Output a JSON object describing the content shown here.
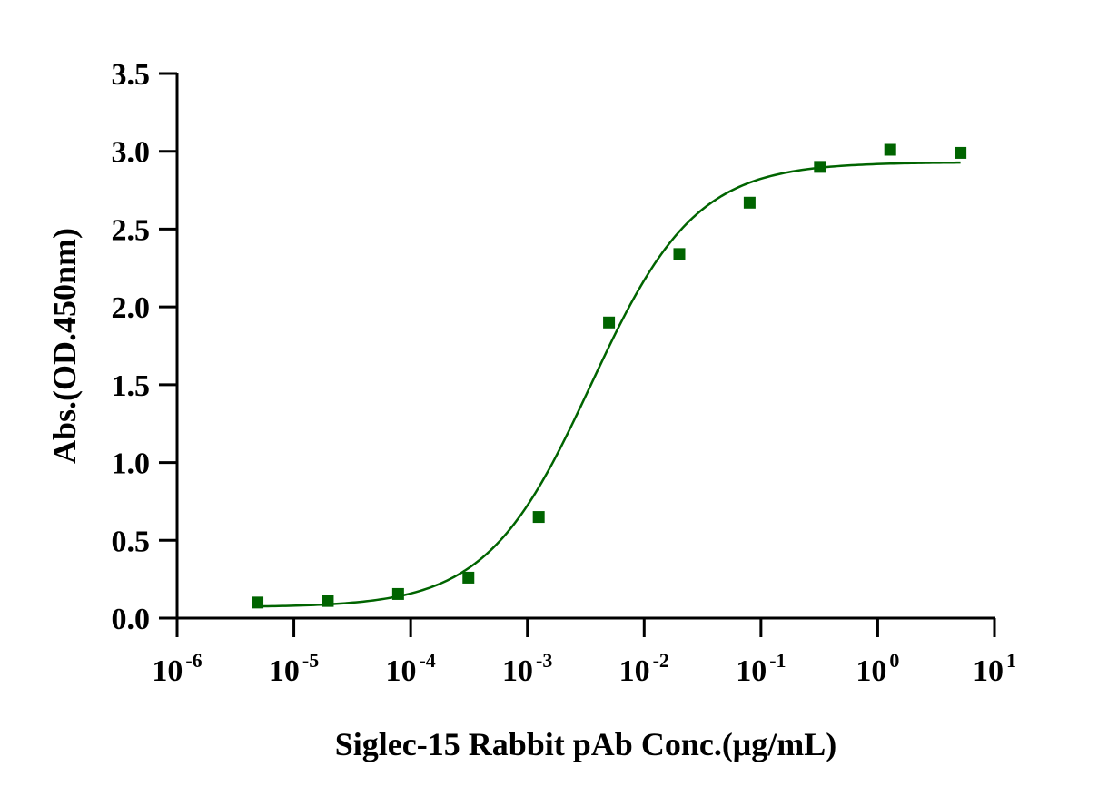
{
  "chart_data": {
    "type": "scatter",
    "title": "",
    "xlabel": "Siglec-15 Rabbit pAb Conc.(μg/mL)",
    "ylabel": "Abs.(OD.450nm)",
    "xscale": "log",
    "xlim": [
      1e-06,
      10
    ],
    "ylim": [
      0,
      3.5
    ],
    "x_ticks": [
      {
        "base": "10",
        "exp": "-6"
      },
      {
        "base": "10",
        "exp": "-5"
      },
      {
        "base": "10",
        "exp": "-4"
      },
      {
        "base": "10",
        "exp": "-3"
      },
      {
        "base": "10",
        "exp": "-2"
      },
      {
        "base": "10",
        "exp": "-1"
      },
      {
        "base": "10",
        "exp": "0"
      },
      {
        "base": "10",
        "exp": "1"
      }
    ],
    "y_ticks": [
      "0.0",
      "0.5",
      "1.0",
      "1.5",
      "2.0",
      "2.5",
      "3.0",
      "3.5"
    ],
    "grid": false,
    "legend": "none",
    "series": [
      {
        "x": [
          4.8828e-06,
          1.95313e-05,
          7.8125e-05,
          0.0003125,
          0.00125,
          0.005,
          0.02,
          0.08,
          0.32,
          1.28,
          5.12
        ],
        "values": [
          0.1,
          0.11,
          0.155,
          0.26,
          0.65,
          1.9,
          2.34,
          2.67,
          2.9,
          3.01,
          2.99
        ],
        "marker": "square",
        "color": "#006400",
        "fit": {
          "model": "4PL",
          "bottom": 0.07,
          "top": 2.93,
          "ec50": 0.0035,
          "hill": 0.97,
          "color": "#006400"
        }
      }
    ]
  }
}
